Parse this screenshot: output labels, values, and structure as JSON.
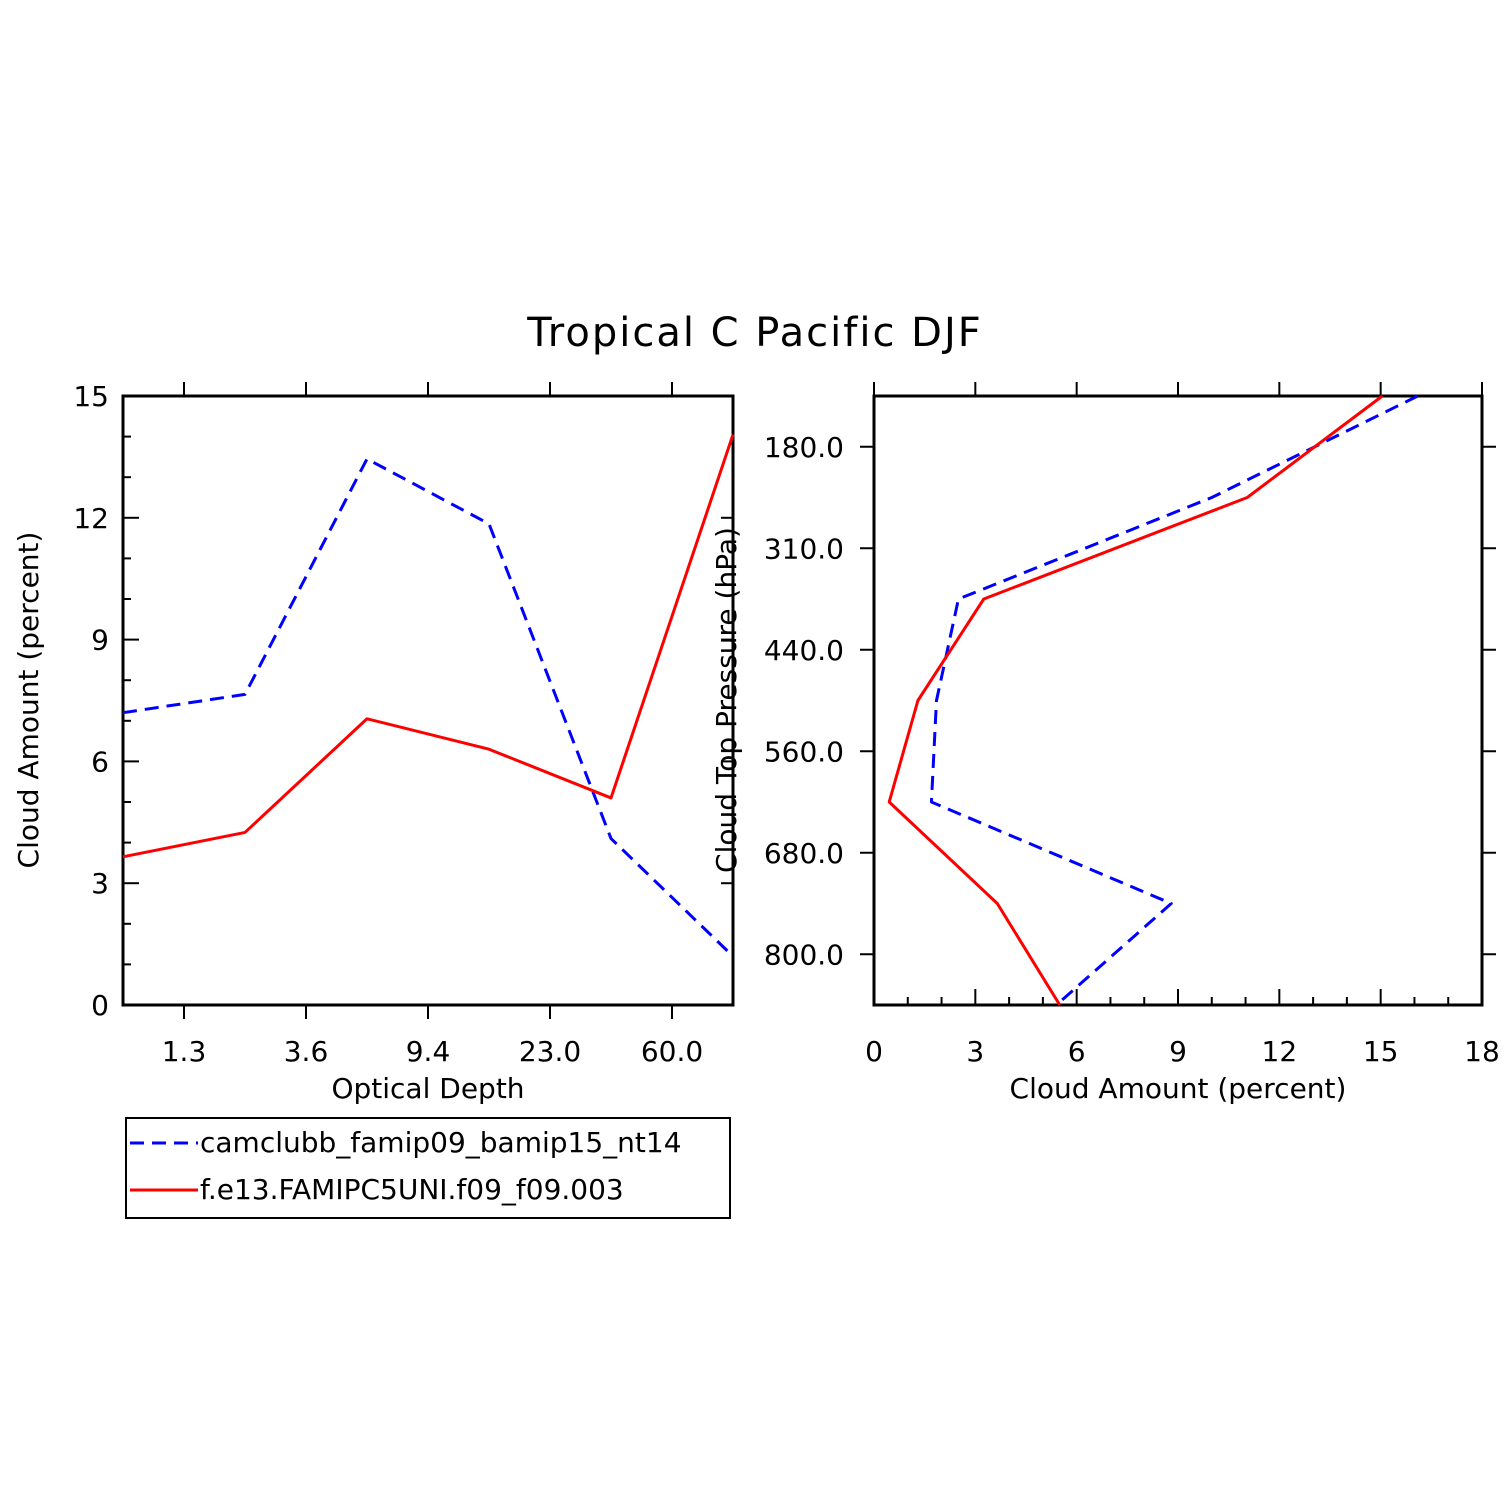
{
  "title": "Tropical C Pacific DJF",
  "colors": {
    "series_a": "#0000ff",
    "series_b": "#ff0000",
    "axes": "#000000"
  },
  "legend": {
    "entries": [
      {
        "label": "camclubb_famip09_bamip15_nt14",
        "color": "#0000ff",
        "style": "dashed"
      },
      {
        "label": "f.e13.FAMIPC5UNI.f09_f09.003",
        "color": "#ff0000",
        "style": "solid"
      }
    ]
  },
  "chart_data": [
    {
      "type": "line",
      "title": "Tropical C Pacific DJF",
      "xlabel": "Optical Depth",
      "ylabel": "Cloud Amount (percent)",
      "x_tick_labels": [
        "1.3",
        "3.6",
        "9.4",
        "23.0",
        "60.0"
      ],
      "x_tick_index": [
        0.5,
        1.5,
        2.5,
        3.5,
        4.5
      ],
      "x_points_index": [
        0,
        1,
        2,
        3,
        4,
        5
      ],
      "xlim": [
        0,
        5
      ],
      "ylim": [
        0,
        15
      ],
      "y_ticks": [
        0,
        3,
        6,
        9,
        12,
        15
      ],
      "series": [
        {
          "name": "camclubb_famip09_bamip15_nt14",
          "style": "dashed",
          "values": [
            7.2,
            7.65,
            13.45,
            11.85,
            4.1,
            1.2
          ]
        },
        {
          "name": "f.e13.FAMIPC5UNI.f09_f09.003",
          "style": "solid",
          "values": [
            3.65,
            4.25,
            7.05,
            6.3,
            5.1,
            14.05
          ]
        }
      ]
    },
    {
      "type": "line",
      "xlabel": "Cloud Amount (percent)",
      "ylabel": "Cloud Top Pressure (hPa)",
      "xlim": [
        0,
        18
      ],
      "x_ticks": [
        0,
        3,
        6,
        9,
        12,
        15,
        18
      ],
      "y_tick_labels": [
        "180.0",
        "310.0",
        "440.0",
        "560.0",
        "680.0",
        "800.0"
      ],
      "y_tick_index": [
        0.5,
        1.5,
        2.5,
        3.5,
        4.5,
        5.5
      ],
      "y_points_index": [
        0,
        1,
        2,
        3,
        4,
        5,
        6
      ],
      "ylim_index": [
        0,
        6
      ],
      "series": [
        {
          "name": "camclubb_famip09_bamip15_nt14",
          "style": "dashed",
          "values": [
            16.1,
            10.0,
            2.5,
            1.85,
            1.7,
            8.8,
            5.4
          ]
        },
        {
          "name": "f.e13.FAMIPC5UNI.f09_f09.003",
          "style": "solid",
          "values": [
            15.05,
            11.05,
            3.25,
            1.3,
            0.45,
            3.65,
            5.5
          ]
        }
      ]
    }
  ]
}
